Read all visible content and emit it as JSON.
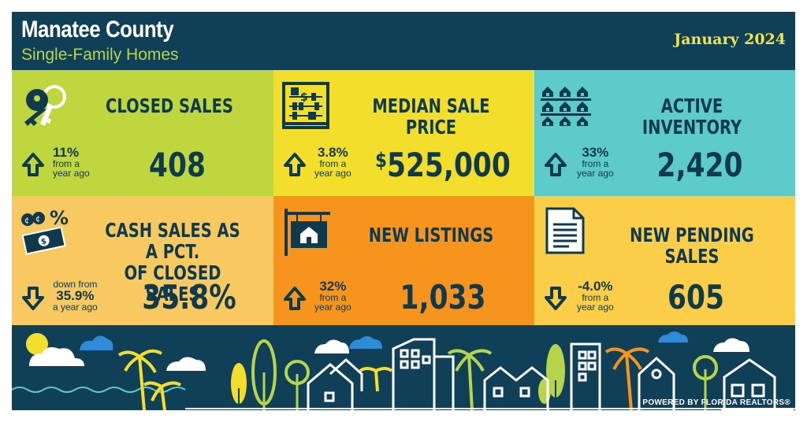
{
  "header": {
    "title": "Manatee County",
    "subtitle": "Single-Family Homes",
    "date": "January 2024"
  },
  "tiles": [
    {
      "label": "CLOSED SALES",
      "value": "408",
      "change_big": "11%",
      "change_small": [
        "from a",
        "year ago"
      ],
      "direction": "up",
      "color": "#bfd63f",
      "icon": "keys-icon"
    },
    {
      "label": "MEDIAN SALE PRICE",
      "value": "525,000",
      "value_prefix": "$",
      "change_big": "3.8%",
      "change_small": [
        "from a",
        "year ago"
      ],
      "direction": "up",
      "color": "#f3de2c",
      "icon": "abacus-icon"
    },
    {
      "label": "ACTIVE INVENTORY",
      "value": "2,420",
      "change_big": "33%",
      "change_small": [
        "from a",
        "year ago"
      ],
      "direction": "up",
      "color": "#5ccbc9",
      "icon": "houses-grid-icon"
    },
    {
      "label_lines": [
        "CASH SALES AS A PCT.",
        "OF CLOSED SALES"
      ],
      "value": "35.8%",
      "change_small_top": "down from",
      "change_big": "35.9%",
      "change_small": [
        "a year ago"
      ],
      "direction": "down",
      "color": "#f8c861",
      "icon": "cash-percent-icon"
    },
    {
      "label": "NEW LISTINGS",
      "value": "1,033",
      "change_big": "32%",
      "change_small": [
        "from a",
        "year ago"
      ],
      "direction": "up",
      "color": "#f7941d",
      "icon": "listing-sign-icon"
    },
    {
      "label": "NEW PENDING SALES",
      "value": "605",
      "change_big": "-4.0%",
      "change_small": [
        "from a",
        "year ago"
      ],
      "direction": "down",
      "color": "#fbcd49",
      "icon": "document-icon"
    }
  ],
  "footer": {
    "powered": "POWERED BY FLORIDA REALTORS®"
  }
}
